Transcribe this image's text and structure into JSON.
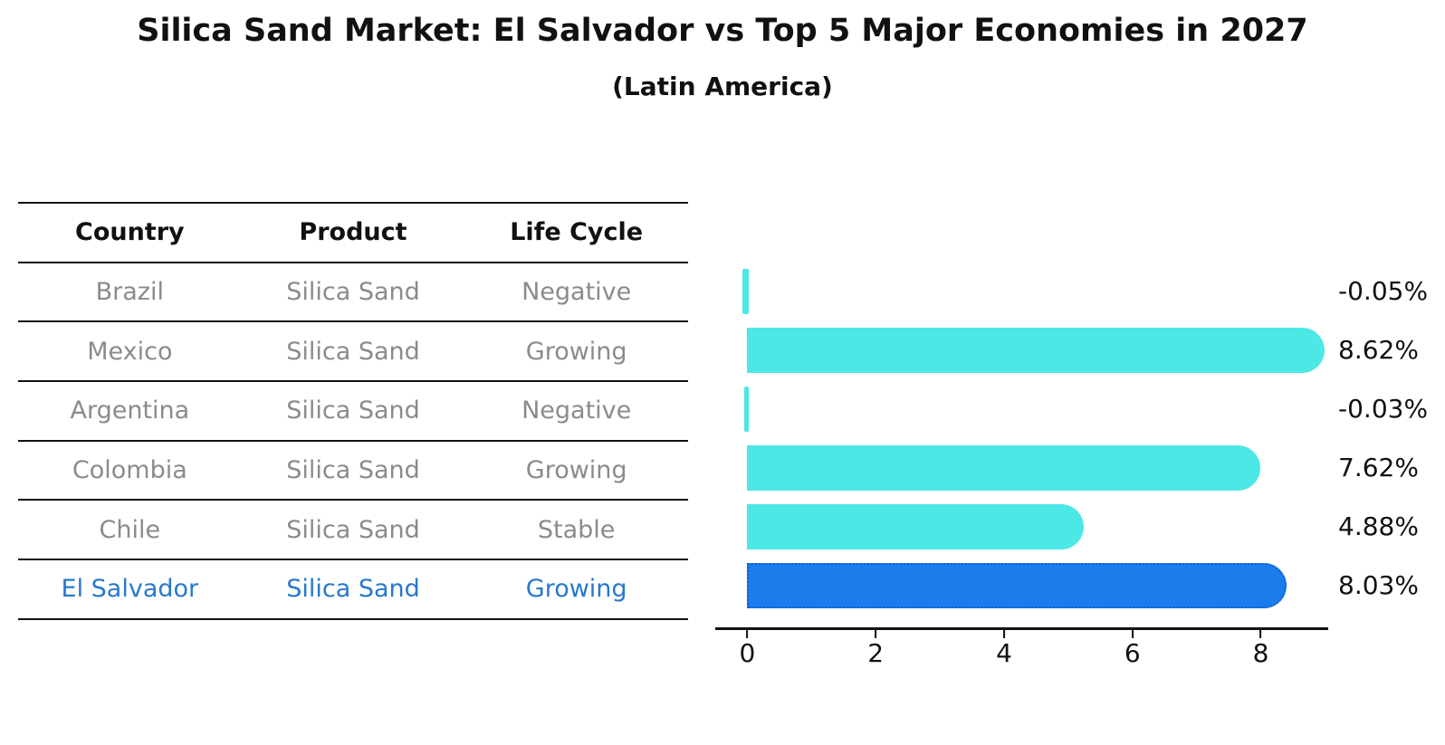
{
  "chart_data": {
    "type": "bar",
    "orientation": "horizontal",
    "title": "Silica Sand Market: El Salvador vs Top 5 Major Economies in 2027",
    "subtitle": "(Latin America)",
    "categories": [
      "Brazil",
      "Mexico",
      "Argentina",
      "Colombia",
      "Chile",
      "El Salvador"
    ],
    "values": [
      -0.05,
      8.62,
      -0.03,
      7.62,
      4.88,
      8.03
    ],
    "value_labels": [
      "-0.05%",
      "8.62%",
      "-0.03%",
      "7.62%",
      "4.88%",
      "8.03%"
    ],
    "unit": "%",
    "x_ticks": [
      0,
      2,
      4,
      6,
      8
    ],
    "x_tick_labels": [
      "0",
      "2",
      "4",
      "6",
      "8"
    ],
    "xlim": [
      -0.5,
      9.05
    ],
    "grid": false,
    "legend": "none",
    "highlight_index": 5,
    "bar_color": "#4be8e6",
    "highlight_color": "#1b7ceb",
    "highlight_border_color": "#0d5fd6"
  },
  "table": {
    "headers": [
      "Country",
      "Product",
      "Life Cycle"
    ],
    "rows": [
      {
        "country": "Brazil",
        "product": "Silica Sand",
        "life_cycle": "Negative"
      },
      {
        "country": "Mexico",
        "product": "Silica Sand",
        "life_cycle": "Growing"
      },
      {
        "country": "Argentina",
        "product": "Silica Sand",
        "life_cycle": "Negative"
      },
      {
        "country": "Colombia",
        "product": "Silica Sand",
        "life_cycle": "Growing"
      },
      {
        "country": "Chile",
        "product": "Silica Sand",
        "life_cycle": "Stable"
      },
      {
        "country": "El Salvador",
        "product": "Silica Sand",
        "life_cycle": "Growing"
      }
    ],
    "text_color": "#8b8b8b",
    "highlight_text_color": "#2878cc"
  }
}
